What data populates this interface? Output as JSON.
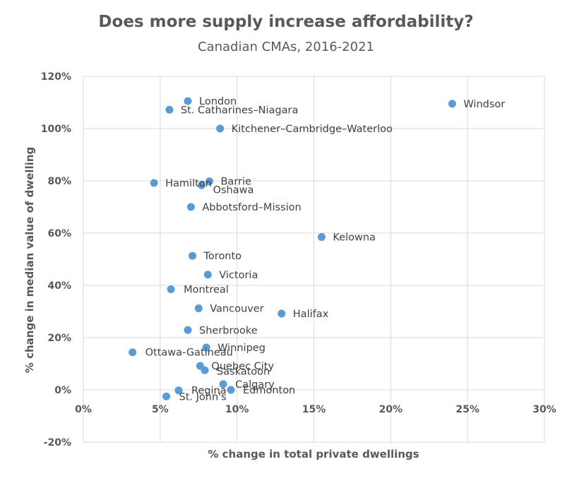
{
  "chart_data": {
    "type": "scatter",
    "title": "Does more supply increase affordability?",
    "subtitle": "Canadian CMAs, 2016-2021",
    "xlabel": "% change in total private dwellings",
    "ylabel": "% change in median value of dwelling",
    "xlim": [
      0,
      30
    ],
    "ylim": [
      -20,
      120
    ],
    "x_ticks": [
      0,
      5,
      10,
      15,
      20,
      25,
      30
    ],
    "y_ticks": [
      -20,
      0,
      20,
      40,
      60,
      80,
      100,
      120
    ],
    "grid": true,
    "marker_color": "#5B9BD5",
    "points": [
      {
        "label": "London",
        "x": 6.8,
        "y": 110.5
      },
      {
        "label": "St. Catharines–Niagara",
        "x": 5.6,
        "y": 107.2
      },
      {
        "label": "Windsor",
        "x": 24.0,
        "y": 109.5
      },
      {
        "label": "Kitchener–Cambridge–Waterloo",
        "x": 8.9,
        "y": 100.0
      },
      {
        "label": "Barrie",
        "x": 8.2,
        "y": 79.8
      },
      {
        "label": "Hamilton",
        "x": 4.6,
        "y": 79.2
      },
      {
        "label": "Oshawa",
        "x": 7.7,
        "y": 78.3
      },
      {
        "label": "Abbotsford–Mission",
        "x": 7.0,
        "y": 70.0
      },
      {
        "label": "Kelowna",
        "x": 15.5,
        "y": 58.5
      },
      {
        "label": "Toronto",
        "x": 7.1,
        "y": 51.3
      },
      {
        "label": "Victoria",
        "x": 8.1,
        "y": 44.1
      },
      {
        "label": "Montreal",
        "x": 5.7,
        "y": 38.5
      },
      {
        "label": "Vancouver",
        "x": 7.5,
        "y": 31.2
      },
      {
        "label": "Halifax",
        "x": 12.9,
        "y": 29.2
      },
      {
        "label": "Sherbrooke",
        "x": 6.8,
        "y": 22.9
      },
      {
        "label": "Winnipeg",
        "x": 8.0,
        "y": 16.2
      },
      {
        "label": "Ottawa-Gatineau",
        "x": 3.2,
        "y": 14.4
      },
      {
        "label": "Quebec City",
        "x": 7.6,
        "y": 9.2
      },
      {
        "label": "Saskatoon",
        "x": 7.9,
        "y": 7.5
      },
      {
        "label": "Calgary",
        "x": 9.1,
        "y": 2.2
      },
      {
        "label": "Regina",
        "x": 6.2,
        "y": -0.2
      },
      {
        "label": "Edmonton",
        "x": 9.6,
        "y": 0.0
      },
      {
        "label": "St. John's",
        "x": 5.4,
        "y": -2.5
      }
    ]
  }
}
